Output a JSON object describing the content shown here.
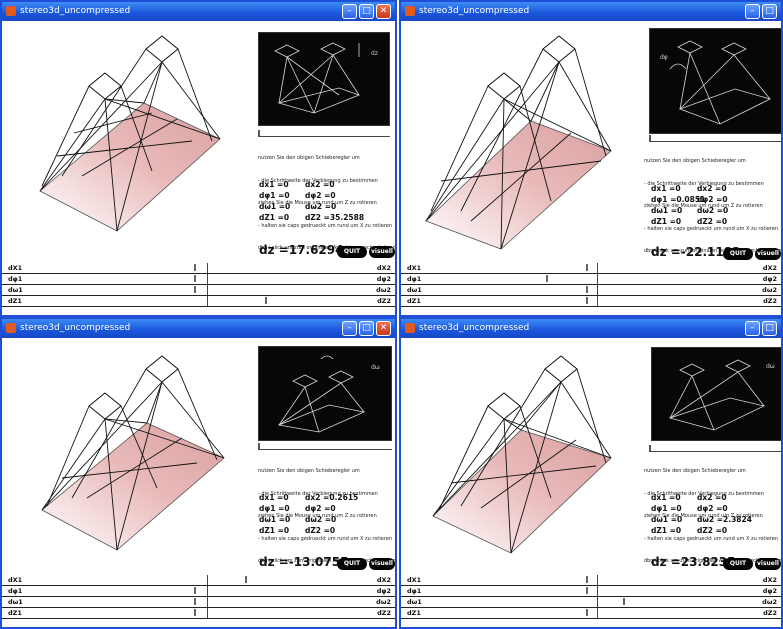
{
  "windows": [
    {
      "title": "stereo3d_uncompressed",
      "hint_lines": [
        "nutzen Sie den obigen Schieberegler um",
        "- die Schrittweite der Verbiegung zu bestimmen",
        "ziehen Sie die Mouse um rund um Z zu rotieren",
        "- halten sie caps gedrueckt um rund um X zu rotieren",
        "dbg+click um zum originalen Ansicht zurueckzukehren"
      ],
      "values": [
        {
          "a": "dx1 =0",
          "b": "dx2 =0"
        },
        {
          "a": "dφ1 =0",
          "b": "dφ2 =0"
        },
        {
          "a": "dω1 =0",
          "b": "dω2 =0"
        },
        {
          "a": "dZ1 =0",
          "b": "dZ2 =35.2588"
        }
      ],
      "dz": "dz =17.6294",
      "quit": "QUIT",
      "visual": "visuell",
      "sliders": [
        {
          "left": "dX1",
          "right": "dX2",
          "level": 0.5
        },
        {
          "left": "dφ1",
          "right": "dφ2",
          "level": 0.5
        },
        {
          "left": "dω1",
          "right": "dω2",
          "level": 0.5
        },
        {
          "left": "dZ1",
          "right": "dZ2",
          "level": 0.72
        }
      ]
    },
    {
      "title": "stereo3d_uncompressed",
      "hint_lines": [
        "nutzen Sie den obigen Schieberegler um",
        "- die Schrittweite der Verbiegung zu bestimmen",
        "ziehen Sie die Mouse um rund um Z zu rotieren",
        "- halten sie caps gedrueckt um rund um X zu rotieren",
        "dbg+click um zum originalen Ansicht zurueckzukehren"
      ],
      "values": [
        {
          "a": "dx1 =0",
          "b": "dx2 =0"
        },
        {
          "a": "dφ1 =0.0851",
          "b": "dφ2 =0"
        },
        {
          "a": "dω1 =0",
          "b": "dω2 =0"
        },
        {
          "a": "dZ1 =0",
          "b": "dZ2 =0"
        }
      ],
      "dz": "dz =-22.1182",
      "quit": "QUIT",
      "visual": "visuell",
      "sliders": [
        {
          "left": "dX1",
          "right": "dX2",
          "level": 0.5
        },
        {
          "left": "dφ1",
          "right": "dφ2",
          "level": 0.37
        },
        {
          "left": "dω1",
          "right": "dω2",
          "level": 0.5
        },
        {
          "left": "dZ1",
          "right": "dZ2",
          "level": 0.5
        }
      ]
    },
    {
      "title": "stereo3d_uncompressed",
      "hint_lines": [
        "nutzen Sie den obigen Schieberegler um",
        "- die Schrittweite der Verbiegung zu bestimmen",
        "ziehen Sie die Mouse um rund um Z zu rotieren",
        "- halten sie caps gedrueckt um rund um X zu rotieren",
        "dbg+click um zum originalen Ansicht zurueckzukehren"
      ],
      "values": [
        {
          "a": "dx1 =0",
          "b": "dx2 =0.2615"
        },
        {
          "a": "dφ1 =0",
          "b": "dφ2 =0"
        },
        {
          "a": "dω1 =0",
          "b": "dω2 =0"
        },
        {
          "a": "dZ1 =0",
          "b": "dZ2 =0"
        }
      ],
      "dz": "dz =-13.0755",
      "quit": "QUIT",
      "visual": "visuell",
      "sliders": [
        {
          "left": "dX1",
          "right": "dX2",
          "level": 0.66
        },
        {
          "left": "dφ1",
          "right": "dφ2",
          "level": 0.5
        },
        {
          "left": "dω1",
          "right": "dω2",
          "level": 0.5
        },
        {
          "left": "dZ1",
          "right": "dZ2",
          "level": 0.5
        }
      ]
    },
    {
      "title": "stereo3d_uncompressed",
      "hint_lines": [
        "nutzen Sie den obigen Schieberegler um",
        "- die Schrittweite der Verbiegung zu bestimmen",
        "ziehen Sie die Mouse um rund um Z zu rotieren",
        "- halten sie caps gedrueckt um rund um X zu rotieren",
        "dbg+click um zum originalen Ansicht zurueckzukehren"
      ],
      "values": [
        {
          "a": "dx1 =0",
          "b": "dx2 =0"
        },
        {
          "a": "dφ1 =0",
          "b": "dφ2 =0"
        },
        {
          "a": "dω1 =0",
          "b": "dω2 =2.3824"
        },
        {
          "a": "dZ1 =0",
          "b": "dZ2 =0"
        }
      ],
      "dz": "dz =23.8235",
      "quit": "QUIT",
      "visual": "visuell",
      "sliders": [
        {
          "left": "dX1",
          "right": "dX2",
          "level": 0.5
        },
        {
          "left": "dφ1",
          "right": "dφ2",
          "level": 0.5
        },
        {
          "left": "dω1",
          "right": "dω2",
          "level": 0.62
        },
        {
          "left": "dZ1",
          "right": "dZ2",
          "level": 0.5
        }
      ]
    }
  ],
  "colors": {
    "titlebar": "#1a55dc",
    "close_button": "#c8381c",
    "plane_fill": "#e8b4b4",
    "button_bg": "#050505"
  }
}
